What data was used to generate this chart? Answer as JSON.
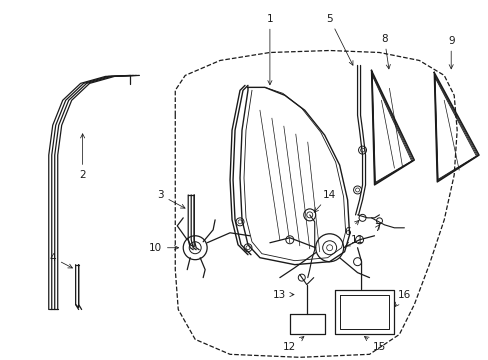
{
  "bg_color": "#ffffff",
  "line_color": "#1a1a1a",
  "font_size": 7.5,
  "figsize": [
    4.89,
    3.6
  ],
  "dpi": 100
}
